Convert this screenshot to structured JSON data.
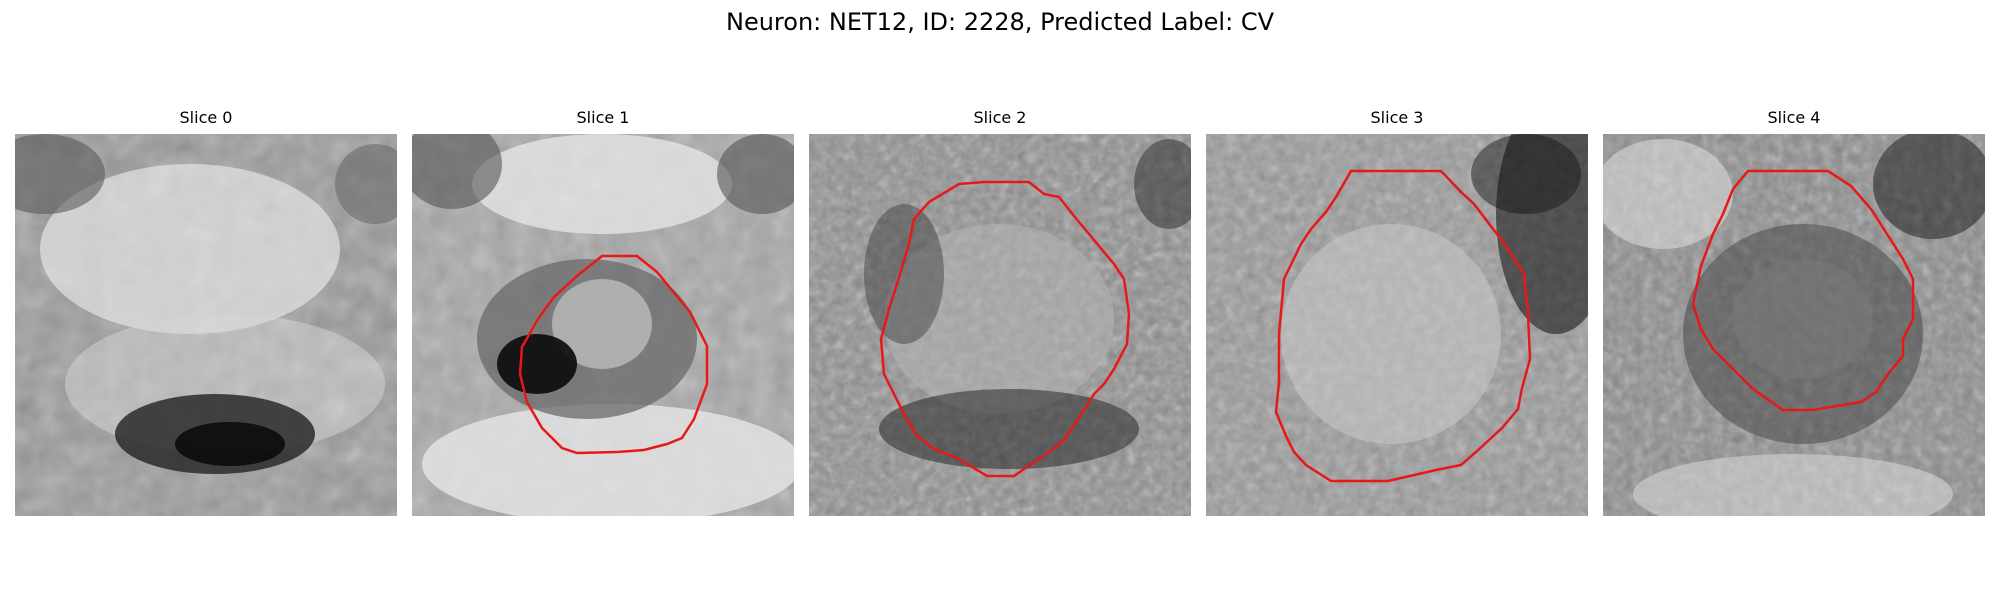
{
  "figure": {
    "title": "Neuron: NET12, ID: 2228, Predicted Label: CV"
  },
  "panels": [
    {
      "title": "Slice 0",
      "outline": false
    },
    {
      "title": "Slice 1",
      "outline": true
    },
    {
      "title": "Slice 2",
      "outline": true
    },
    {
      "title": "Slice 3",
      "outline": true
    },
    {
      "title": "Slice 4",
      "outline": true
    }
  ],
  "colors": {
    "outline": "#e81818",
    "background": "#ffffff"
  }
}
